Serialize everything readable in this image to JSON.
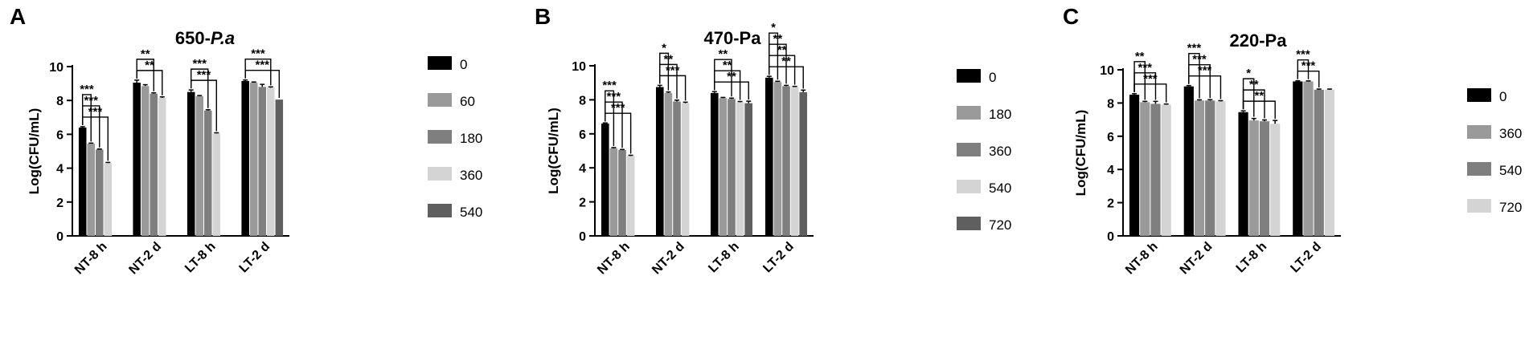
{
  "chart_data": [
    {
      "type": "bar",
      "panel": "A",
      "title_main": "650-",
      "title_italic": "P.a",
      "ylabel": "Log(CFU/mL)",
      "ylim": [
        0,
        10
      ],
      "yticks": [
        "0",
        "2",
        "4",
        "6",
        "8",
        "10"
      ],
      "categories": [
        "NT-8 h",
        "NT-2 d",
        "LT-8 h",
        "LT-2 d"
      ],
      "series": [
        {
          "name": "0",
          "color": "#000000",
          "values": [
            6.4,
            9.05,
            8.5,
            9.15
          ],
          "errors": [
            0.05,
            0.15,
            0.12,
            0.06
          ]
        },
        {
          "name": "60",
          "color": "#9a9a9a",
          "values": [
            5.45,
            8.85,
            8.25,
            9.05
          ],
          "errors": [
            0.03,
            0.08,
            0.04,
            0.04
          ]
        },
        {
          "name": "180",
          "color": "#7f7f7f",
          "values": [
            5.1,
            8.4,
            7.4,
            8.8
          ],
          "errors": [
            0.03,
            0.05,
            0.05,
            0.15
          ]
        },
        {
          "name": "360",
          "color": "#d4d4d4",
          "values": [
            4.3,
            8.15,
            6.05,
            8.75
          ],
          "errors": [
            0.04,
            0.06,
            0.04,
            0.05
          ]
        },
        {
          "name": "540",
          "color": "#5f5f5f",
          "values": [
            null,
            null,
            null,
            8.05
          ],
          "errors": [
            0,
            0,
            0,
            0
          ]
        }
      ],
      "significance": [
        {
          "category": 0,
          "from": 0,
          "to": 1,
          "label": "***"
        },
        {
          "category": 0,
          "from": 0,
          "to": 2,
          "label": "***"
        },
        {
          "category": 0,
          "from": 0,
          "to": 3,
          "label": "***"
        },
        {
          "category": 1,
          "from": 0,
          "to": 2,
          "label": "**"
        },
        {
          "category": 1,
          "from": 0,
          "to": 3,
          "label": "**"
        },
        {
          "category": 2,
          "from": 0,
          "to": 2,
          "label": "***"
        },
        {
          "category": 2,
          "from": 0,
          "to": 3,
          "label": "***"
        },
        {
          "category": 3,
          "from": 0,
          "to": 3,
          "label": "***"
        },
        {
          "category": 3,
          "from": 0,
          "to": 4,
          "label": "***"
        }
      ]
    },
    {
      "type": "bar",
      "panel": "B",
      "title_main": "470-Pa",
      "title_italic": "",
      "ylabel": "Log(CFU/mL)",
      "ylim": [
        0,
        10
      ],
      "yticks": [
        "0",
        "2",
        "4",
        "6",
        "8",
        "10"
      ],
      "categories": [
        "NT-8 h",
        "NT-2 d",
        "LT-8 h",
        "LT-2 d"
      ],
      "series": [
        {
          "name": "0",
          "color": "#000000",
          "values": [
            6.6,
            8.75,
            8.4,
            9.3
          ],
          "errors": [
            0.04,
            0.1,
            0.08,
            0.08
          ]
        },
        {
          "name": "180",
          "color": "#9a9a9a",
          "values": [
            5.15,
            8.4,
            8.1,
            9.05
          ],
          "errors": [
            0.04,
            0.06,
            0.04,
            0.04
          ]
        },
        {
          "name": "360",
          "color": "#7f7f7f",
          "values": [
            5.05,
            7.9,
            8.05,
            8.8
          ],
          "errors": [
            0.03,
            0.08,
            0.05,
            0.05
          ]
        },
        {
          "name": "540",
          "color": "#d4d4d4",
          "values": [
            4.7,
            7.8,
            7.85,
            8.75
          ],
          "errors": [
            0.04,
            0.06,
            0.05,
            0.04
          ]
        },
        {
          "name": "720",
          "color": "#5f5f5f",
          "values": [
            null,
            null,
            7.8,
            8.45
          ],
          "errors": [
            0,
            0,
            0.12,
            0.12
          ]
        }
      ],
      "significance": [
        {
          "category": 0,
          "from": 0,
          "to": 1,
          "label": "***"
        },
        {
          "category": 0,
          "from": 0,
          "to": 2,
          "label": "***"
        },
        {
          "category": 0,
          "from": 0,
          "to": 3,
          "label": "***"
        },
        {
          "category": 1,
          "from": 0,
          "to": 1,
          "label": "*"
        },
        {
          "category": 1,
          "from": 0,
          "to": 2,
          "label": "**"
        },
        {
          "category": 1,
          "from": 0,
          "to": 3,
          "label": "***"
        },
        {
          "category": 2,
          "from": 0,
          "to": 2,
          "label": "**"
        },
        {
          "category": 2,
          "from": 0,
          "to": 3,
          "label": "**"
        },
        {
          "category": 2,
          "from": 0,
          "to": 4,
          "label": "**"
        },
        {
          "category": 3,
          "from": 0,
          "to": 1,
          "label": "*"
        },
        {
          "category": 3,
          "from": 0,
          "to": 2,
          "label": "**"
        },
        {
          "category": 3,
          "from": 0,
          "to": 3,
          "label": "**"
        },
        {
          "category": 3,
          "from": 0,
          "to": 4,
          "label": "**"
        }
      ]
    },
    {
      "type": "bar",
      "panel": "C",
      "title_main": "220-Pa",
      "title_italic": "",
      "ylabel": "Log(CFU/mL)",
      "ylim": [
        0,
        10
      ],
      "yticks": [
        "0",
        "2",
        "4",
        "6",
        "8",
        "10"
      ],
      "categories": [
        "NT-8 h",
        "NT-2 d",
        "LT-8 h",
        "LT-2 d"
      ],
      "series": [
        {
          "name": "0",
          "color": "#000000",
          "values": [
            8.5,
            9.0,
            7.45,
            9.3
          ],
          "errors": [
            0.06,
            0.05,
            0.08,
            0.04
          ]
        },
        {
          "name": "360",
          "color": "#9a9a9a",
          "values": [
            8.05,
            8.15,
            6.95,
            9.3
          ],
          "errors": [
            0.05,
            0.04,
            0.12,
            0.03
          ]
        },
        {
          "name": "540",
          "color": "#7f7f7f",
          "values": [
            7.95,
            8.15,
            6.9,
            8.8
          ],
          "errors": [
            0.15,
            0.05,
            0.08,
            0.04
          ]
        },
        {
          "name": "720",
          "color": "#d4d4d4",
          "values": [
            7.9,
            8.1,
            6.75,
            8.8
          ],
          "errors": [
            0.04,
            0.04,
            0.2,
            0.04
          ]
        }
      ],
      "significance": [
        {
          "category": 0,
          "from": 0,
          "to": 1,
          "label": "**"
        },
        {
          "category": 0,
          "from": 0,
          "to": 2,
          "label": "***"
        },
        {
          "category": 0,
          "from": 0,
          "to": 3,
          "label": "***"
        },
        {
          "category": 1,
          "from": 0,
          "to": 1,
          "label": "***"
        },
        {
          "category": 1,
          "from": 0,
          "to": 2,
          "label": "***"
        },
        {
          "category": 1,
          "from": 0,
          "to": 3,
          "label": "***"
        },
        {
          "category": 2,
          "from": 0,
          "to": 1,
          "label": "*"
        },
        {
          "category": 2,
          "from": 0,
          "to": 2,
          "label": "**"
        },
        {
          "category": 2,
          "from": 0,
          "to": 3,
          "label": "**"
        },
        {
          "category": 3,
          "from": 0,
          "to": 1,
          "label": "***"
        },
        {
          "category": 3,
          "from": 0,
          "to": 2,
          "label": "***"
        }
      ]
    }
  ]
}
